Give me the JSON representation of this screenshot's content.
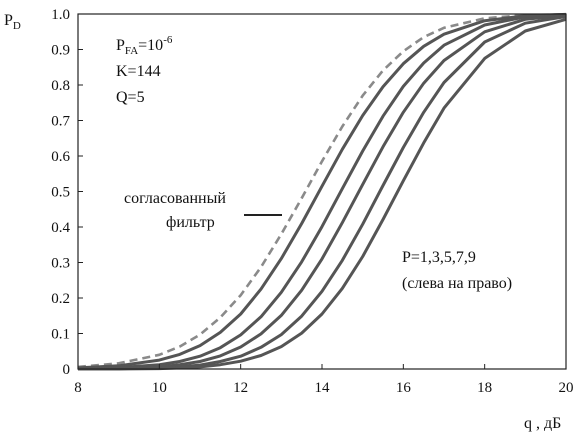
{
  "chart_data": {
    "type": "line",
    "title": "",
    "xlabel": "q , дБ",
    "ylabel": "P",
    "ylabel_sub": "D",
    "xlim": [
      8,
      20
    ],
    "ylim": [
      0,
      1
    ],
    "x_ticks": [
      "8",
      "10",
      "12",
      "14",
      "16",
      "18",
      "20"
    ],
    "y_ticks": [
      "0",
      "0.1",
      "0.2",
      "0.3",
      "0.4",
      "0.5",
      "0.6",
      "0.7",
      "0.8",
      "0.9",
      "1.0"
    ],
    "grid": false,
    "params": {
      "pfa_main": "P",
      "pfa_sub": "FA",
      "pfa_value": "=10",
      "pfa_exp": "-6",
      "k": "K=144",
      "q": "Q=5"
    },
    "annotations": {
      "matched_line1": "согласованный",
      "matched_line2": "фильтр",
      "p_line1": "P=1,3,5,7,9",
      "p_line2": "(слева на право)"
    },
    "series": [
      {
        "style": "dashed",
        "x": [
          8,
          9,
          10,
          10.5,
          11,
          11.5,
          12,
          12.5,
          13,
          13.5,
          14,
          14.5,
          15,
          15.5,
          16,
          16.5,
          17,
          18,
          19,
          20
        ],
        "y": [
          0.006,
          0.016,
          0.04,
          0.063,
          0.097,
          0.145,
          0.208,
          0.287,
          0.38,
          0.481,
          0.585,
          0.683,
          0.77,
          0.841,
          0.895,
          0.935,
          0.961,
          0.988,
          0.997,
          0.999
        ]
      },
      {
        "style": "solid",
        "x": [
          8,
          9,
          10,
          10.5,
          11,
          11.5,
          12,
          12.5,
          13,
          13.5,
          14,
          14.5,
          15,
          15.5,
          16,
          16.5,
          17,
          18,
          19,
          20
        ],
        "y": [
          0.003,
          0.009,
          0.025,
          0.041,
          0.066,
          0.103,
          0.155,
          0.225,
          0.311,
          0.41,
          0.515,
          0.619,
          0.714,
          0.795,
          0.86,
          0.909,
          0.943,
          0.981,
          0.995,
          0.999
        ]
      },
      {
        "style": "solid",
        "x": [
          8,
          9,
          10,
          10.5,
          11,
          11.5,
          12,
          12.5,
          13,
          13.5,
          14,
          14.5,
          15,
          15.5,
          16,
          16.5,
          17,
          18,
          19,
          20
        ],
        "y": [
          0.001,
          0.004,
          0.012,
          0.021,
          0.036,
          0.06,
          0.096,
          0.147,
          0.216,
          0.302,
          0.401,
          0.508,
          0.614,
          0.712,
          0.796,
          0.862,
          0.912,
          0.969,
          0.992,
          0.998
        ]
      },
      {
        "style": "solid",
        "x": [
          8,
          9,
          10,
          10.5,
          11,
          11.5,
          12,
          12.5,
          13,
          13.5,
          14,
          14.5,
          15,
          15.5,
          16,
          16.5,
          17,
          18,
          19,
          20
        ],
        "y": [
          0.001,
          0.002,
          0.006,
          0.012,
          0.021,
          0.037,
          0.062,
          0.099,
          0.151,
          0.222,
          0.31,
          0.412,
          0.52,
          0.626,
          0.723,
          0.805,
          0.869,
          0.95,
          0.985,
          0.996
        ]
      },
      {
        "style": "solid",
        "x": [
          8,
          9,
          10,
          10.5,
          11,
          11.5,
          12,
          12.5,
          13,
          13.5,
          14,
          14.5,
          15,
          15.5,
          16,
          16.5,
          17,
          18,
          19,
          20
        ],
        "y": [
          0.0,
          0.001,
          0.003,
          0.006,
          0.011,
          0.021,
          0.036,
          0.061,
          0.097,
          0.149,
          0.219,
          0.306,
          0.408,
          0.517,
          0.624,
          0.723,
          0.807,
          0.921,
          0.974,
          0.993
        ]
      },
      {
        "style": "solid",
        "x": [
          8,
          9,
          10,
          10.5,
          11,
          11.5,
          12,
          12.5,
          13,
          13.5,
          14,
          14.5,
          15,
          15.5,
          16,
          16.5,
          17,
          18,
          19,
          20
        ],
        "y": [
          0.0,
          0.0,
          0.001,
          0.003,
          0.006,
          0.012,
          0.022,
          0.038,
          0.063,
          0.101,
          0.155,
          0.227,
          0.317,
          0.421,
          0.53,
          0.637,
          0.735,
          0.875,
          0.952,
          0.985
        ]
      }
    ]
  }
}
